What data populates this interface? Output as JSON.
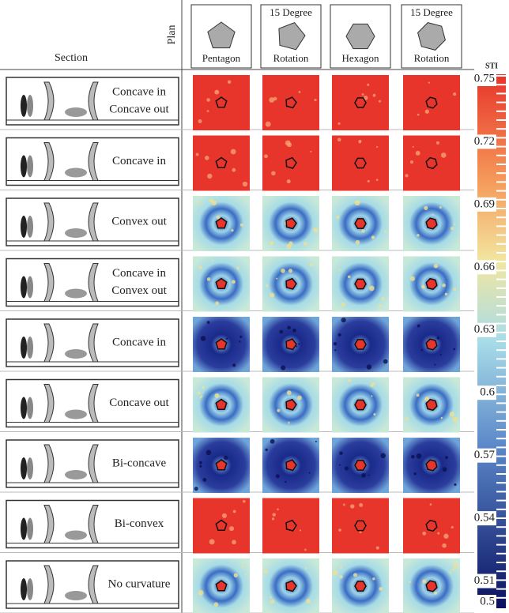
{
  "header": {
    "section": "Section",
    "plan": "Plan"
  },
  "plans": [
    [
      "Pentagon"
    ],
    [
      "15 Degree",
      "Rotation"
    ],
    [
      "Hexagon"
    ],
    [
      "15 Degree",
      "Rotation"
    ]
  ],
  "sections": [
    [
      "Concave in",
      "Concave out"
    ],
    [
      "Concave in"
    ],
    [
      "Convex out"
    ],
    [
      "Concave in",
      "Convex out"
    ],
    [
      "Concave in"
    ],
    [
      "Concave out"
    ],
    [
      "Bi-concave"
    ],
    [
      "Bi-convex"
    ],
    [
      "No curvature"
    ]
  ],
  "colorbar": {
    "title": "STI",
    "ticks": [
      0.75,
      0.72,
      0.69,
      0.66,
      0.63,
      0.6,
      0.57,
      0.54,
      0.51,
      0.5
    ]
  }
}
